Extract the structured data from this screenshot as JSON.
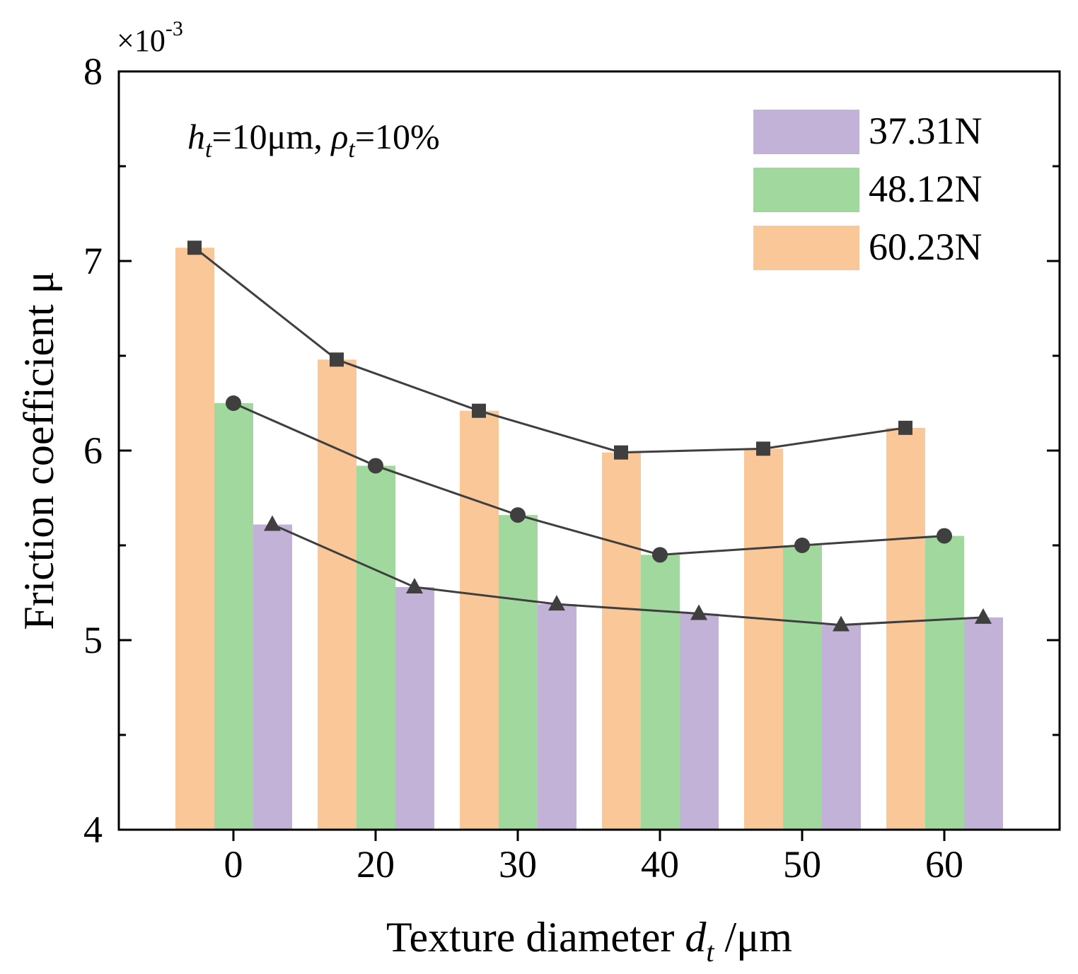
{
  "chart_data": {
    "type": "bar",
    "categories": [
      "0",
      "20",
      "30",
      "40",
      "50",
      "60"
    ],
    "series": [
      {
        "name": "60.23N",
        "color": "#FAC898",
        "marker": "square",
        "values": [
          7.07,
          6.48,
          6.21,
          5.99,
          6.01,
          6.12
        ]
      },
      {
        "name": "48.12N",
        "color": "#A0D89E",
        "marker": "circle",
        "values": [
          6.25,
          5.92,
          5.66,
          5.45,
          5.5,
          5.55
        ]
      },
      {
        "name": "37.31N",
        "color": "#C2B2D7",
        "marker": "triangle",
        "values": [
          5.61,
          5.28,
          5.19,
          5.14,
          5.08,
          5.12
        ]
      }
    ],
    "legend_order": [
      "37.31N",
      "48.12N",
      "60.23N"
    ],
    "legend_position": "top-right",
    "line_color": "#3f3f3f",
    "ylim": [
      4,
      8
    ],
    "yticks": [
      4,
      5,
      6,
      7,
      8
    ],
    "y_scale_label": "×10",
    "y_scale_exponent": "-3",
    "xlabel": {
      "main": "Texture diameter ",
      "var": "d",
      "sub": "t",
      "unit": " /μm"
    },
    "ylabel": "Friction coefficient μ",
    "annotation": {
      "h_var": "h",
      "h_sub": "t",
      "h_value": "=10μm, ",
      "rho_var": "ρ",
      "rho_sub": "t",
      "rho_value": "=10%"
    }
  }
}
